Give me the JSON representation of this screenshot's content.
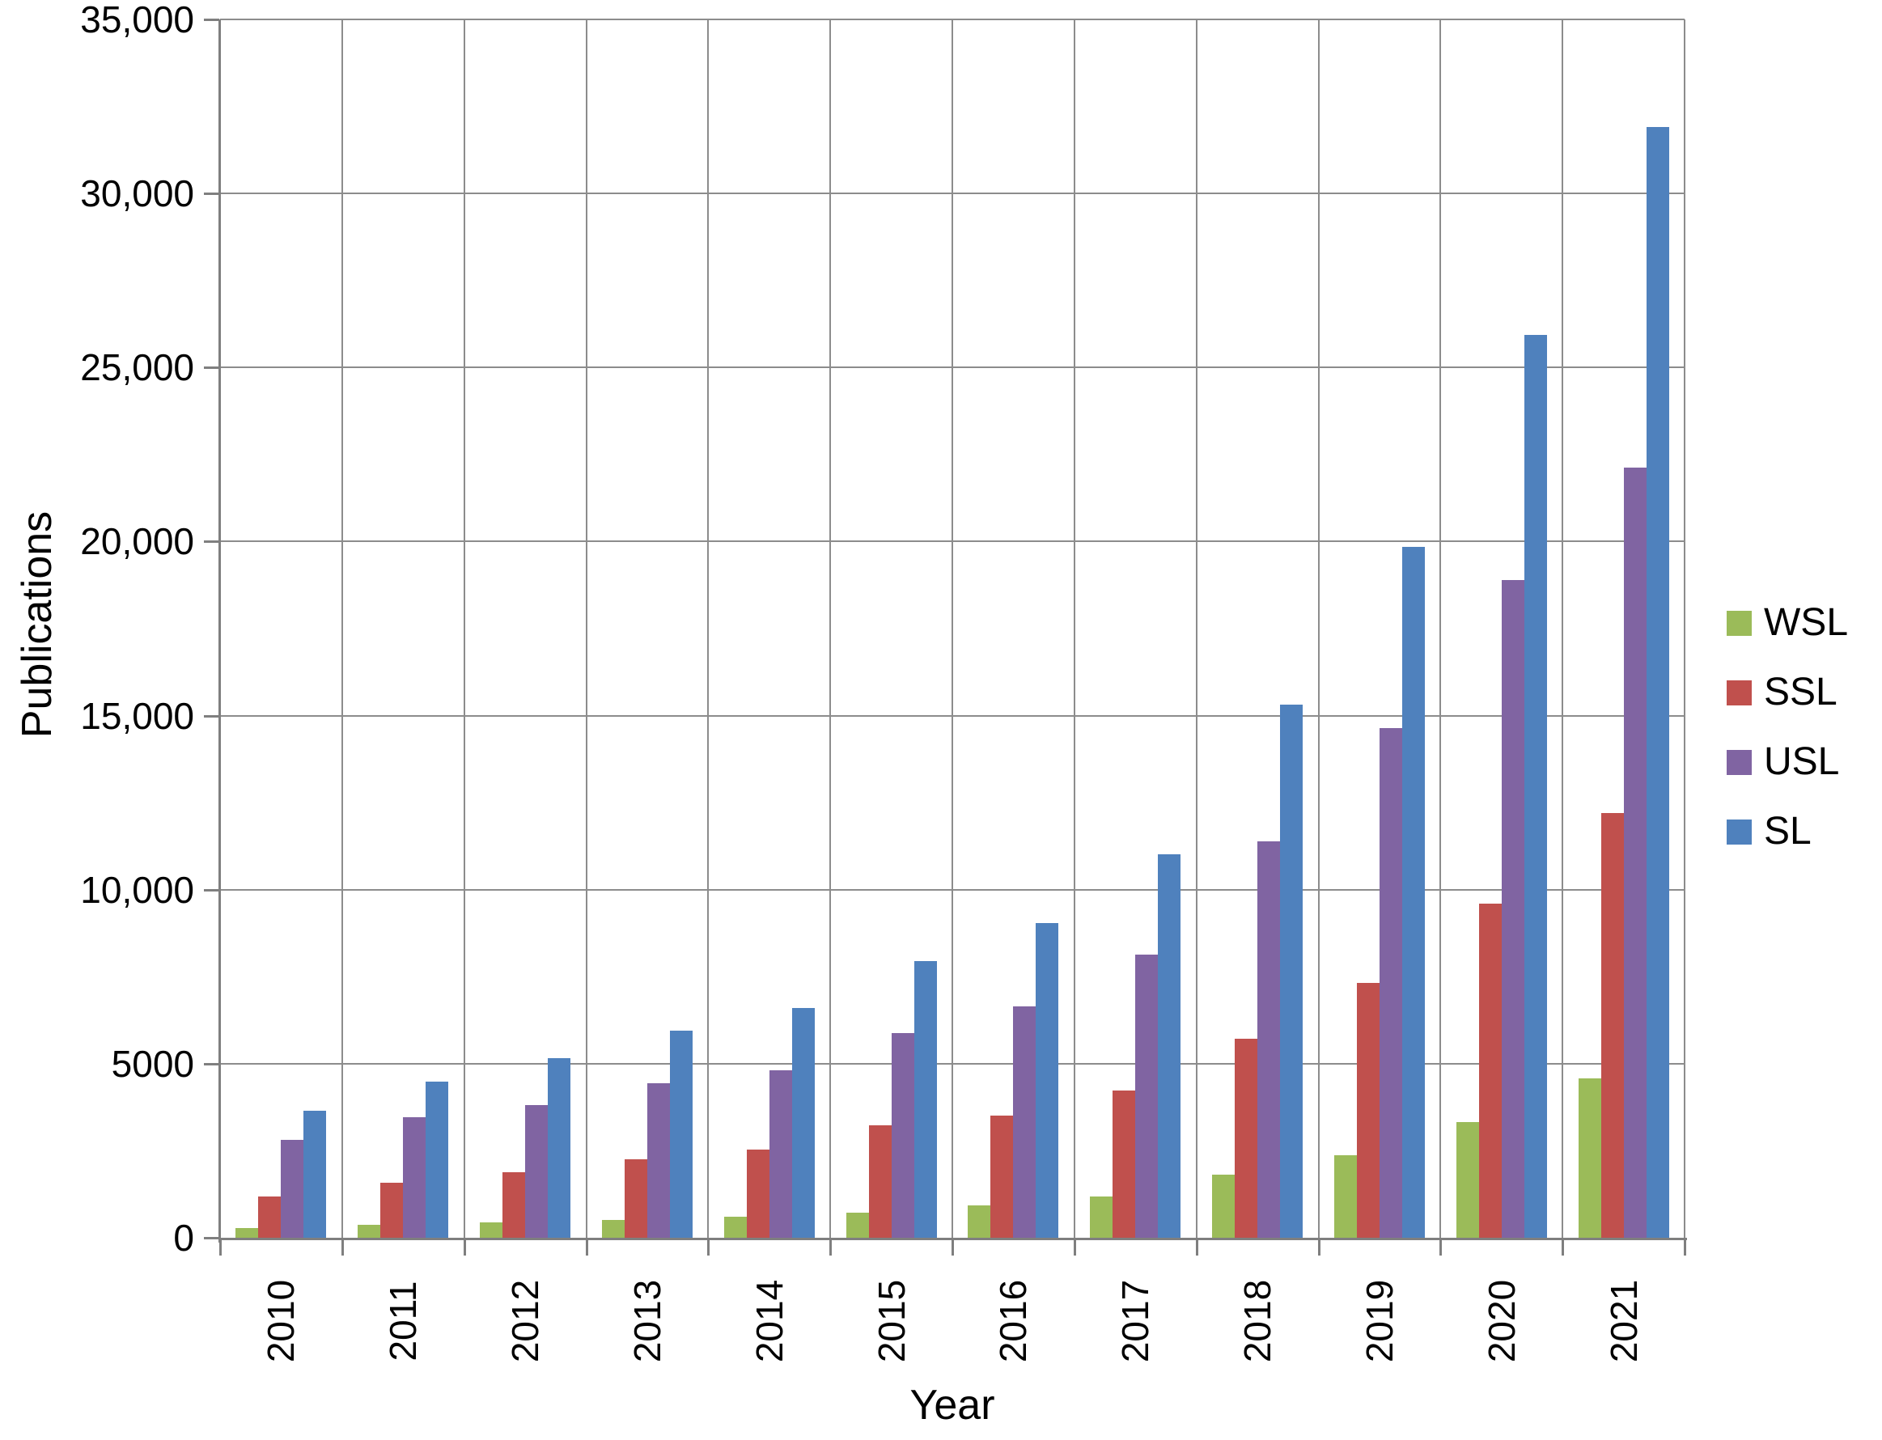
{
  "chart_data": {
    "type": "bar",
    "title": "",
    "xlabel": "Year",
    "ylabel": "Publications",
    "categories": [
      "2010",
      "2011",
      "2012",
      "2013",
      "2014",
      "2015",
      "2016",
      "2017",
      "2018",
      "2019",
      "2020",
      "2021"
    ],
    "series": [
      {
        "name": "WSL",
        "color": "#9BBB59",
        "values": [
          270,
          380,
          450,
          500,
          600,
          720,
          930,
          1180,
          1810,
          2380,
          3320,
          4580
        ]
      },
      {
        "name": "SSL",
        "color": "#C0504D",
        "values": [
          1180,
          1590,
          1880,
          2260,
          2530,
          3220,
          3520,
          4230,
          5720,
          7310,
          9600,
          12200
        ]
      },
      {
        "name": "USL",
        "color": "#8064A2",
        "values": [
          2810,
          3470,
          3800,
          4430,
          4820,
          5880,
          6640,
          8140,
          11390,
          14650,
          18900,
          22130
        ]
      },
      {
        "name": "SL",
        "color": "#4F81BD",
        "values": [
          3660,
          4480,
          5150,
          5950,
          6610,
          7950,
          9050,
          11020,
          15310,
          19850,
          25930,
          31900
        ]
      }
    ],
    "ylim": [
      0,
      35000
    ],
    "ytick_step": 5000,
    "ytick_labels": [
      "0",
      "5000",
      "10,000",
      "15,000",
      "20,000",
      "25,000",
      "30,000",
      "35,000"
    ],
    "grid": "both",
    "legend_position": "right",
    "gridline_color": "#8c8c8c",
    "axis_color": "#7f7f7f"
  }
}
